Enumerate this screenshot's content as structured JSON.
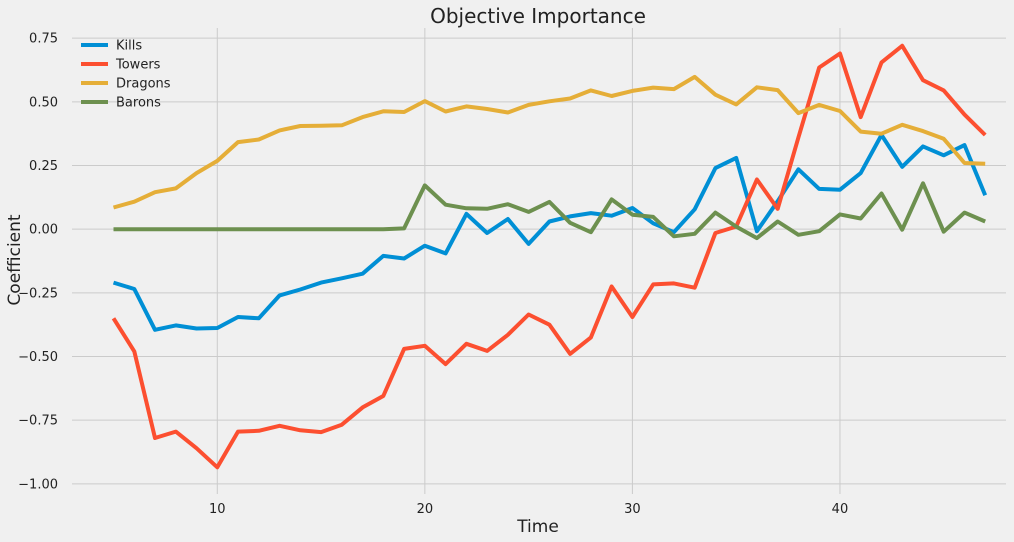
{
  "chart_data": {
    "type": "line",
    "title": "Objective Importance",
    "xlabel": "Time",
    "ylabel": "Coefficient",
    "xlim": [
      3,
      48
    ],
    "ylim": [
      -1.04,
      0.79
    ],
    "xticks": [
      10,
      20,
      30,
      40
    ],
    "yticks": [
      -1.0,
      -0.75,
      -0.5,
      -0.25,
      0.0,
      0.25,
      0.5,
      0.75
    ],
    "ytick_labels": [
      "−1.00",
      "−0.75",
      "−0.50",
      "−0.25",
      "0.00",
      "0.25",
      "0.50",
      "0.75"
    ],
    "grid": true,
    "legend_position": "top-left",
    "x": [
      5,
      6,
      7,
      8,
      9,
      10,
      11,
      12,
      13,
      14,
      15,
      16,
      17,
      18,
      19,
      20,
      21,
      22,
      23,
      24,
      25,
      26,
      27,
      28,
      29,
      30,
      31,
      32,
      33,
      34,
      35,
      36,
      37,
      38,
      39,
      40,
      41,
      42,
      43,
      44,
      45,
      46,
      47
    ],
    "series": [
      {
        "name": "Kills",
        "color": "#008fd5",
        "values": [
          -0.21,
          -0.235,
          -0.395,
          -0.378,
          -0.39,
          -0.388,
          -0.345,
          -0.35,
          -0.26,
          -0.237,
          -0.21,
          -0.193,
          -0.175,
          -0.105,
          -0.115,
          -0.065,
          -0.095,
          0.06,
          -0.015,
          0.04,
          -0.058,
          0.03,
          0.05,
          0.063,
          0.053,
          0.083,
          0.023,
          -0.012,
          0.078,
          0.24,
          0.28,
          -0.008,
          0.11,
          0.235,
          0.158,
          0.155,
          0.22,
          0.37,
          0.245,
          0.325,
          0.29,
          0.33,
          0.133
        ]
      },
      {
        "name": "Towers",
        "color": "#fc4f30",
        "values": [
          -0.35,
          -0.48,
          -0.82,
          -0.795,
          -0.86,
          -0.935,
          -0.795,
          -0.792,
          -0.772,
          -0.79,
          -0.797,
          -0.768,
          -0.7,
          -0.655,
          -0.47,
          -0.458,
          -0.53,
          -0.45,
          -0.478,
          -0.415,
          -0.335,
          -0.375,
          -0.49,
          -0.425,
          -0.225,
          -0.345,
          -0.217,
          -0.213,
          -0.23,
          -0.015,
          0.01,
          0.195,
          0.08,
          0.36,
          0.635,
          0.69,
          0.44,
          0.655,
          0.72,
          0.585,
          0.545,
          0.45,
          0.37
        ]
      },
      {
        "name": "Dragons",
        "color": "#e5ae38",
        "values": [
          0.085,
          0.108,
          0.145,
          0.16,
          0.22,
          0.268,
          0.342,
          0.352,
          0.388,
          0.405,
          0.406,
          0.408,
          0.44,
          0.463,
          0.46,
          0.503,
          0.462,
          0.482,
          0.472,
          0.458,
          0.488,
          0.502,
          0.513,
          0.545,
          0.523,
          0.543,
          0.556,
          0.55,
          0.598,
          0.528,
          0.49,
          0.557,
          0.546,
          0.456,
          0.488,
          0.464,
          0.383,
          0.375,
          0.41,
          0.385,
          0.355,
          0.26,
          0.257
        ]
      },
      {
        "name": "Barons",
        "color": "#6d904f",
        "values": [
          0.0,
          0.0,
          0.0,
          0.0,
          0.0,
          0.0,
          0.0,
          0.0,
          0.0,
          0.0,
          0.0,
          0.0,
          0.0,
          0.0,
          0.003,
          0.172,
          0.096,
          0.082,
          0.08,
          0.098,
          0.068,
          0.107,
          0.025,
          -0.012,
          0.117,
          0.057,
          0.048,
          -0.028,
          -0.018,
          0.065,
          0.01,
          -0.035,
          0.03,
          -0.022,
          -0.008,
          0.058,
          0.042,
          0.14,
          -0.002,
          0.18,
          -0.01,
          0.065,
          0.03
        ]
      }
    ]
  }
}
